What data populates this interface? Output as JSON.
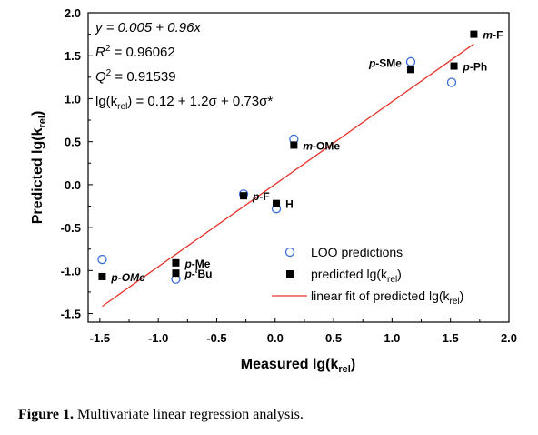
{
  "chart_data": {
    "type": "scatter",
    "xlabel": "Measured lg(k",
    "xlabel_sub": "rel",
    "xlabel_close": ")",
    "ylabel": "Predicted lg(k",
    "ylabel_sub": "rel",
    "ylabel_close": ")",
    "xlim": [
      -1.6,
      2.0
    ],
    "ylim": [
      -1.6,
      2.0
    ],
    "xticks": [
      "-1.5",
      "-1.0",
      "-0.5",
      "0.0",
      "0.5",
      "1.0",
      "1.5",
      "2.0"
    ],
    "yticks": [
      "-1.5",
      "-1.0",
      "-0.5",
      "0.0",
      "0.5",
      "1.0",
      "1.5",
      "2.0"
    ],
    "xtick_values": [
      -1.5,
      -1.0,
      -0.5,
      0.0,
      0.5,
      1.0,
      1.5,
      2.0
    ],
    "ytick_values": [
      -1.5,
      -1.0,
      -0.5,
      0.0,
      0.5,
      1.0,
      1.5,
      2.0
    ],
    "annotations": {
      "equation": "y = 0.005 + 0.96x",
      "r2_label": "R",
      "r2_sup": "2",
      "r2_value": " = 0.96062",
      "q2_label": "Q",
      "q2_sup": "2",
      "q2_value": " = 0.91539",
      "model_prefix": "lg(k",
      "model_sub": "rel",
      "model_suffix": ") = 0.12 + 1.2σ + 0.73σ*"
    },
    "series": [
      {
        "name": "LOO predictions",
        "marker": "open-circle",
        "color": "#3a6fd8",
        "points": [
          {
            "x": -1.48,
            "y": -0.87
          },
          {
            "x": -0.85,
            "y": -1.1
          },
          {
            "x": -0.27,
            "y": -0.11
          },
          {
            "x": 0.01,
            "y": -0.28
          },
          {
            "x": 0.16,
            "y": 0.53
          },
          {
            "x": 1.16,
            "y": 1.43
          },
          {
            "x": 1.51,
            "y": 1.19
          }
        ]
      },
      {
        "name": "predicted lg(k",
        "name_sub": "rel",
        "name_close": ")",
        "marker": "filled-square",
        "color": "#000000",
        "points": [
          {
            "x": -1.48,
            "y": -1.07
          },
          {
            "x": -0.85,
            "y": -0.91
          },
          {
            "x": -0.85,
            "y": -1.03
          },
          {
            "x": -0.27,
            "y": -0.13
          },
          {
            "x": 0.01,
            "y": -0.22
          },
          {
            "x": 0.16,
            "y": 0.46
          },
          {
            "x": 1.16,
            "y": 1.34
          },
          {
            "x": 1.53,
            "y": 1.38
          },
          {
            "x": 1.7,
            "y": 1.75
          }
        ]
      },
      {
        "name": "linear fit of predicted lg(k",
        "name_sub": "rel",
        "name_close": ")",
        "marker": "line",
        "color": "#e8322a",
        "intercept": 0.005,
        "slope": 0.96,
        "x_range": [
          -1.48,
          1.7
        ]
      }
    ],
    "point_labels": [
      {
        "text_pre": "",
        "text_italic": "p",
        "text_post": "-OMe",
        "italic_all": true,
        "x": -1.48,
        "y": -1.07,
        "pos": "right"
      },
      {
        "text_pre": "",
        "text_italic": "p",
        "text_post": "-Me",
        "x": -0.85,
        "y": -0.91,
        "pos": "right"
      },
      {
        "text_pre": "",
        "text_italic": "p",
        "text_post": "-",
        "sup": "t",
        "text_after_sup": "Bu",
        "x": -0.85,
        "y": -1.03,
        "pos": "right"
      },
      {
        "text_pre": "",
        "text_italic": "p",
        "text_post": "-F",
        "x": -0.27,
        "y": -0.13,
        "pos": "right"
      },
      {
        "text_pre": "H",
        "text_italic": "",
        "text_post": "",
        "x": 0.01,
        "y": -0.22,
        "pos": "right"
      },
      {
        "text_pre": "",
        "text_italic": "m",
        "text_post": "-OMe",
        "x": 0.16,
        "y": 0.46,
        "pos": "right"
      },
      {
        "text_pre": "",
        "text_italic": "p",
        "text_post": "-SMe",
        "x": 1.16,
        "y": 1.34,
        "pos": "left-up"
      },
      {
        "text_pre": "",
        "text_italic": "p",
        "text_post": "-Ph",
        "x": 1.53,
        "y": 1.38,
        "pos": "right"
      },
      {
        "text_pre": "",
        "text_italic": "m",
        "text_post": "-F",
        "x": 1.7,
        "y": 1.75,
        "pos": "right"
      }
    ],
    "legend_position": "bottom-right",
    "grid": false
  },
  "caption": {
    "label": "Figure 1.",
    "text": " Multivariate linear regression analysis."
  }
}
